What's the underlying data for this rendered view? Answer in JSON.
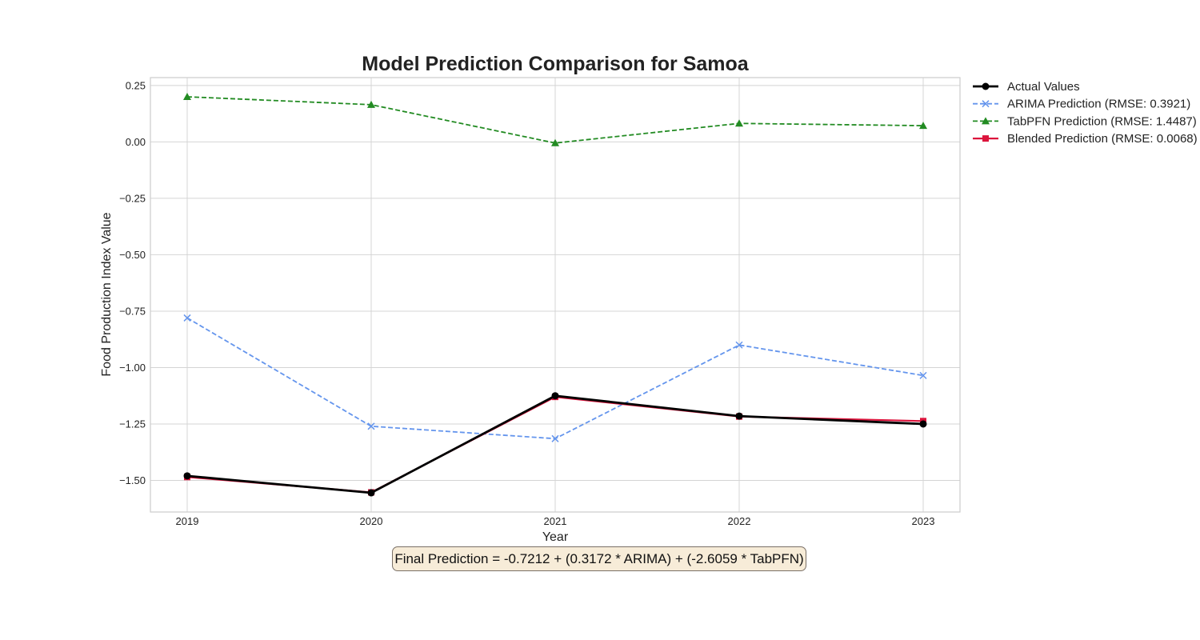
{
  "chart_data": {
    "type": "line",
    "title": "Model Prediction Comparison for Samoa",
    "xlabel": "Year",
    "ylabel": "Food Production Index Value",
    "categories": [
      "2019",
      "2020",
      "2021",
      "2022",
      "2023"
    ],
    "ylim": [
      -1.64,
      0.285
    ],
    "yticks": [
      0.25,
      0.0,
      -0.25,
      -0.5,
      -0.75,
      -1.0,
      -1.25,
      -1.5
    ],
    "ytick_labels": [
      "0.25",
      "0.00",
      "−0.25",
      "−0.50",
      "−0.75",
      "−1.00",
      "−1.25",
      "−1.50"
    ],
    "grid": true,
    "legend_position": "outside top-right",
    "series": [
      {
        "name": "Actual Values",
        "values": [
          -1.48,
          -1.555,
          -1.125,
          -1.215,
          -1.25
        ],
        "color": "#000000",
        "marker": "circle",
        "linestyle": "solid"
      },
      {
        "name": "ARIMA Prediction (RMSE: 0.3921)",
        "values": [
          -0.78,
          -1.26,
          -1.315,
          -0.9,
          -1.035
        ],
        "color": "#6495ed",
        "marker": "x",
        "linestyle": "dashed"
      },
      {
        "name": "TabPFN Prediction (RMSE: 1.4487)",
        "values": [
          0.2,
          0.165,
          -0.005,
          0.082,
          0.072
        ],
        "color": "#228b22",
        "marker": "triangle",
        "linestyle": "dashed"
      },
      {
        "name": "Blended Prediction (RMSE: 0.0068)",
        "values": [
          -1.485,
          -1.553,
          -1.13,
          -1.217,
          -1.237
        ],
        "color": "#dc143c",
        "marker": "square",
        "linestyle": "solid"
      }
    ],
    "annotation": "Final Prediction = -0.7212 + (0.3172 * ARIMA) + (-2.6059 * TabPFN)"
  }
}
